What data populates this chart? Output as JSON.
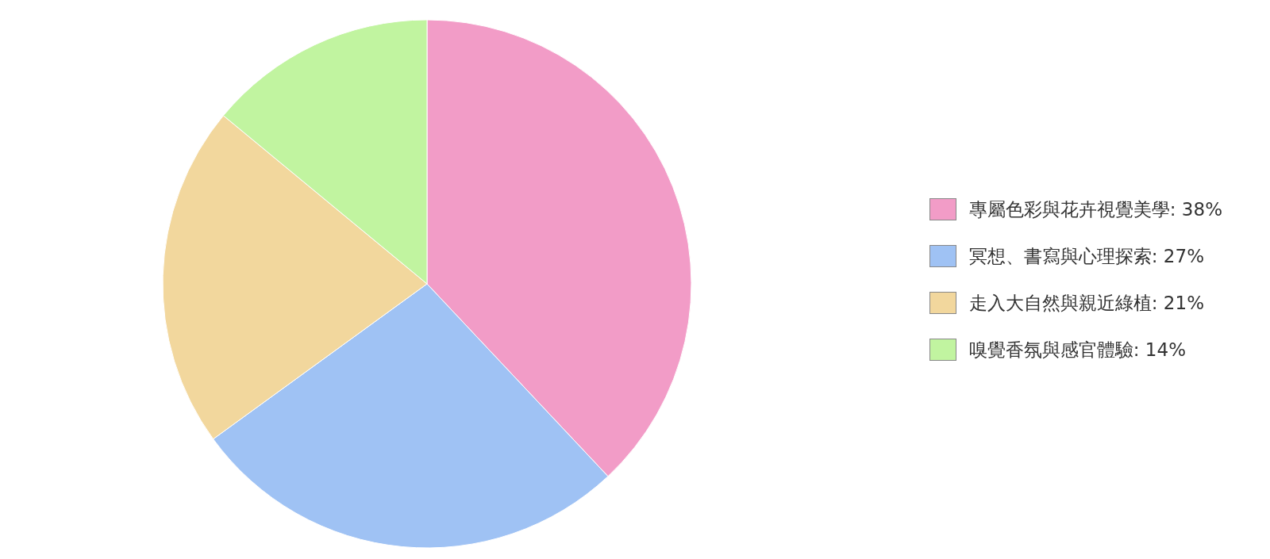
{
  "chart_data": {
    "type": "pie",
    "categories": [
      "專屬色彩與花卉視覺美學: 38%",
      "冥想、書寫與心理探索: 27%",
      "走入大自然與親近綠植: 21%",
      "嗅覺香氛與感官體驗: 14%"
    ],
    "values": [
      38,
      27,
      21,
      14
    ],
    "colors": [
      "#f29cc7",
      "#9fc2f4",
      "#f2d79d",
      "#c1f4a0"
    ],
    "legend": "right"
  }
}
